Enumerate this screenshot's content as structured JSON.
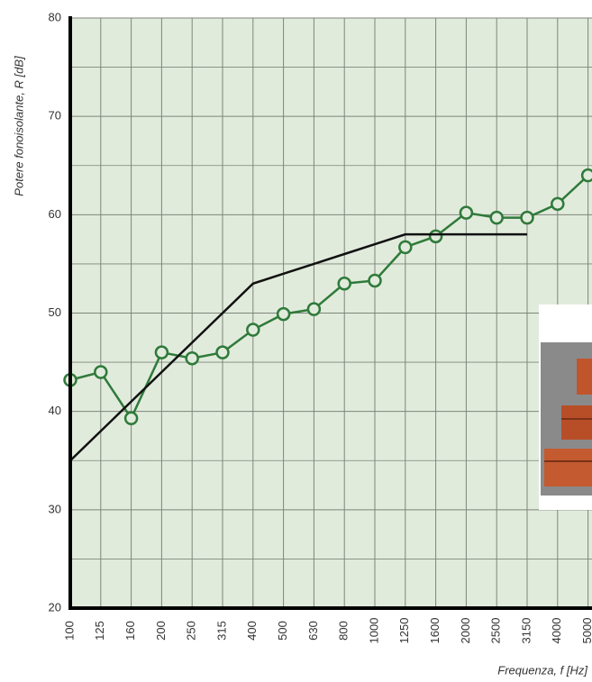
{
  "chart_data": {
    "type": "line",
    "y_label": "Potere fonoisolante, R [dB]",
    "x_label": "Frequenza, f [Hz]",
    "categories": [
      "100",
      "125",
      "160",
      "200",
      "250",
      "315",
      "400",
      "500",
      "630",
      "800",
      "1000",
      "1250",
      "1600",
      "2000",
      "2500",
      "3150",
      "4000",
      "5000"
    ],
    "series": [
      {
        "color": "#2f7a3a",
        "markers": true,
        "values": [
          43.2,
          44,
          39.3,
          46,
          45.4,
          46,
          48.3,
          49.9,
          50.4,
          53,
          53.3,
          56.7,
          57.8,
          60.2,
          59.7,
          59.7,
          61.1,
          64
        ]
      },
      {
        "color": "#111111",
        "markers": false,
        "values": [
          35,
          38,
          41,
          44,
          47,
          50,
          53,
          54,
          55,
          56,
          57,
          58,
          58,
          58,
          58,
          58,
          null,
          null
        ]
      }
    ],
    "ylim": [
      20,
      80
    ],
    "yticks": [
      20,
      30,
      40,
      50,
      60,
      70,
      80
    ],
    "grid": true
  }
}
